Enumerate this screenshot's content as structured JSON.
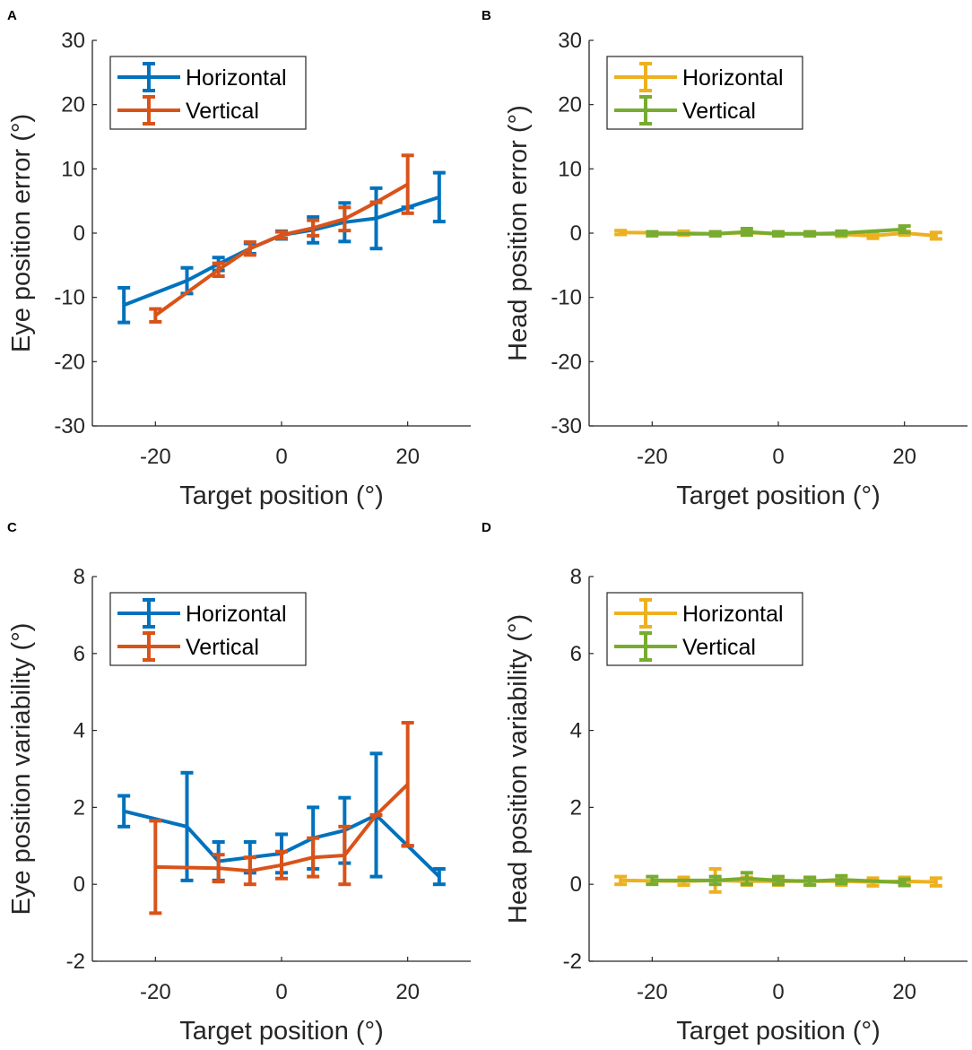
{
  "colors": {
    "horizontal_eye": "#0072BD",
    "vertical_eye": "#D95319",
    "horizontal_head": "#EDB120",
    "vertical_head": "#77AC30",
    "axis": "#262626"
  },
  "chart_data": [
    {
      "panel": "A",
      "type": "line",
      "xlabel": "Target position (°)",
      "ylabel": "Eye position error (°)",
      "xlim": [
        -30,
        30
      ],
      "ylim": [
        -30,
        30
      ],
      "xticks": [
        -20,
        0,
        20
      ],
      "yticks": [
        30,
        20,
        10,
        0,
        -10,
        -20,
        -30
      ],
      "legend_position": "top-left",
      "series": [
        {
          "name": "Horizontal",
          "color": "#0072BD",
          "x": [
            -25,
            -15,
            -10,
            -5,
            0,
            5,
            10,
            15,
            20,
            25
          ],
          "y": [
            -11.2,
            -7.4,
            -4.8,
            -2.4,
            -0.3,
            0.5,
            1.7,
            2.3,
            4,
            5.6
          ],
          "err": [
            2.7,
            2,
            1,
            0.8,
            0.6,
            2,
            3,
            4.7,
            0,
            3.8
          ]
        },
        {
          "name": "Vertical",
          "color": "#D95319",
          "x": [
            -20,
            -10,
            -5,
            0,
            5,
            10,
            15,
            20
          ],
          "y": [
            -12.8,
            -5.7,
            -2.4,
            -0.3,
            0.8,
            2.2,
            4.8,
            7.6
          ],
          "err": [
            1,
            1,
            1,
            0.5,
            1.2,
            1.8,
            0,
            4.5
          ]
        }
      ]
    },
    {
      "panel": "B",
      "type": "line",
      "xlabel": "Target position (°)",
      "ylabel": "Head position error (°)",
      "xlim": [
        -30,
        30
      ],
      "ylim": [
        -30,
        30
      ],
      "xticks": [
        -20,
        0,
        20
      ],
      "yticks": [
        30,
        20,
        10,
        0,
        -10,
        -20,
        -30
      ],
      "legend_position": "top-left",
      "series": [
        {
          "name": "Horizontal",
          "color": "#EDB120",
          "x": [
            -25,
            -15,
            -10,
            -5,
            0,
            5,
            10,
            15,
            20,
            25
          ],
          "y": [
            0.1,
            0,
            -0.1,
            0.1,
            -0.1,
            -0.1,
            -0.2,
            -0.4,
            0,
            -0.4
          ],
          "err": [
            0.3,
            0.3,
            0.3,
            0.3,
            0.3,
            0.3,
            0.3,
            0.4,
            0.3,
            0.5
          ]
        },
        {
          "name": "Vertical",
          "color": "#77AC30",
          "x": [
            -20,
            -10,
            -5,
            0,
            5,
            10,
            20
          ],
          "y": [
            -0.1,
            -0.1,
            0.2,
            -0.1,
            -0.1,
            0,
            0.6
          ],
          "err": [
            0.3,
            0.3,
            0.5,
            0.3,
            0.3,
            0.3,
            0.5
          ]
        }
      ]
    },
    {
      "panel": "C",
      "type": "line",
      "xlabel": "Target position (°)",
      "ylabel": "Eye position variability (°)",
      "xlim": [
        -30,
        30
      ],
      "ylim": [
        -2,
        8
      ],
      "xticks": [
        -20,
        0,
        20
      ],
      "yticks": [
        8,
        6,
        4,
        2,
        0,
        -2
      ],
      "legend_position": "top-left",
      "series": [
        {
          "name": "Horizontal",
          "color": "#0072BD",
          "x": [
            -25,
            -15,
            -10,
            -5,
            0,
            5,
            10,
            15,
            20,
            25
          ],
          "y": [
            1.9,
            1.5,
            0.6,
            0.7,
            0.8,
            1.2,
            1.4,
            1.8,
            1,
            0.2
          ],
          "err": [
            0.4,
            1.4,
            0.5,
            0.4,
            0.5,
            0.8,
            0.85,
            1.6,
            0,
            0.2
          ]
        },
        {
          "name": "Vertical",
          "color": "#D95319",
          "x": [
            -20,
            -10,
            -5,
            0,
            5,
            10,
            15,
            20
          ],
          "y": [
            0.45,
            0.42,
            0.35,
            0.5,
            0.7,
            0.75,
            1.8,
            2.6
          ],
          "err": [
            1.2,
            0.35,
            0.35,
            0.35,
            0.5,
            0.75,
            0,
            1.6
          ]
        }
      ]
    },
    {
      "panel": "D",
      "type": "line",
      "xlabel": "Target position (°)",
      "ylabel": "Head position variability (°)",
      "xlim": [
        -30,
        30
      ],
      "ylim": [
        -2,
        8
      ],
      "xticks": [
        -20,
        0,
        20
      ],
      "yticks": [
        8,
        6,
        4,
        2,
        0,
        -2
      ],
      "legend_position": "top-left",
      "series": [
        {
          "name": "Horizontal",
          "color": "#EDB120",
          "x": [
            -25,
            -15,
            -10,
            -5,
            0,
            5,
            10,
            15,
            20,
            25
          ],
          "y": [
            0.1,
            0.08,
            0.1,
            0.08,
            0.08,
            0.08,
            0.08,
            0.06,
            0.08,
            0.06
          ],
          "err": [
            0.1,
            0.1,
            0.3,
            0.1,
            0.1,
            0.1,
            0.1,
            0.1,
            0.1,
            0.1
          ]
        },
        {
          "name": "Vertical",
          "color": "#77AC30",
          "x": [
            -20,
            -10,
            -5,
            0,
            5,
            10,
            20
          ],
          "y": [
            0.1,
            0.1,
            0.15,
            0.1,
            0.08,
            0.12,
            0.05
          ],
          "err": [
            0.1,
            0.1,
            0.15,
            0.1,
            0.1,
            0.1,
            0.08
          ]
        }
      ]
    }
  ]
}
